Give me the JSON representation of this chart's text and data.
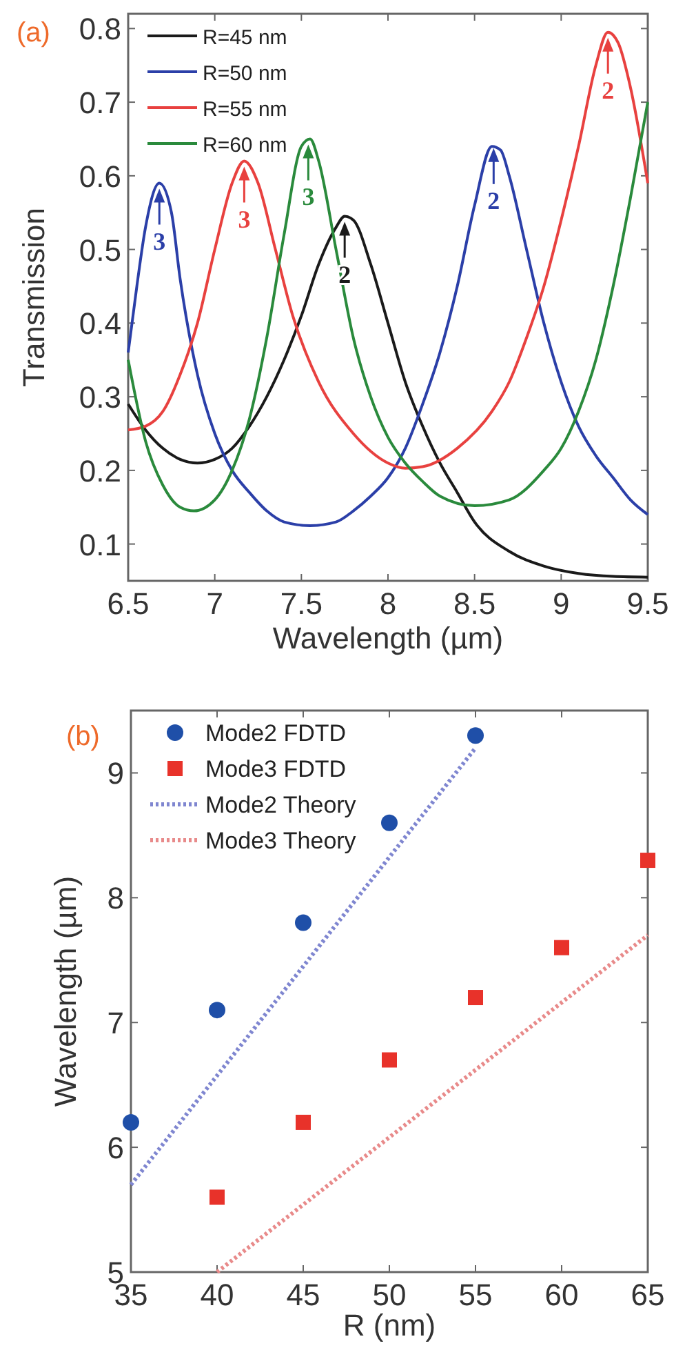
{
  "chart_data": [
    {
      "type": "line",
      "xlabel": "Wavelength (µm)",
      "ylabel": "Transmission",
      "xlim": [
        6.5,
        9.5
      ],
      "ylim": [
        0.05,
        0.82
      ],
      "xticks": [
        6.5,
        7,
        7.5,
        8,
        8.5,
        9,
        9.5
      ],
      "yticks": [
        0.1,
        0.2,
        0.3,
        0.4,
        0.5,
        0.6,
        0.7,
        0.8
      ],
      "legend": "top left",
      "annotations": [
        "(a)",
        {
          "text": "3",
          "x": 6.68,
          "y": 0.59
        },
        {
          "text": "3",
          "x": 7.17,
          "y": 0.62
        },
        {
          "text": "3",
          "x": 7.54,
          "y": 0.65
        },
        {
          "text": "2",
          "x": 7.75,
          "y": 0.545
        },
        {
          "text": "2",
          "x": 8.61,
          "y": 0.645
        },
        {
          "text": "2",
          "x": 9.27,
          "y": 0.795
        }
      ],
      "series": [
        {
          "name": "R=45 nm",
          "color": "#1a1a1a",
          "x": [
            6.5,
            6.6,
            6.7,
            6.8,
            6.9,
            7.0,
            7.1,
            7.2,
            7.3,
            7.4,
            7.5,
            7.6,
            7.7,
            7.75,
            7.8,
            7.9,
            8.0,
            8.1,
            8.2,
            8.3,
            8.4,
            8.5,
            8.7,
            8.9,
            9.1,
            9.3,
            9.5
          ],
          "values": [
            0.29,
            0.255,
            0.23,
            0.215,
            0.21,
            0.215,
            0.23,
            0.26,
            0.3,
            0.35,
            0.41,
            0.48,
            0.53,
            0.545,
            0.54,
            0.48,
            0.4,
            0.32,
            0.26,
            0.21,
            0.17,
            0.13,
            0.09,
            0.07,
            0.06,
            0.056,
            0.055
          ]
        },
        {
          "name": "R=50 nm",
          "color": "#2b3fa8",
          "x": [
            6.5,
            6.55,
            6.6,
            6.68,
            6.75,
            6.8,
            6.9,
            7.0,
            7.1,
            7.2,
            7.3,
            7.4,
            7.55,
            7.7,
            7.8,
            7.9,
            8.0,
            8.1,
            8.2,
            8.3,
            8.4,
            8.5,
            8.6,
            8.65,
            8.7,
            8.8,
            8.9,
            9.0,
            9.1,
            9.2,
            9.3,
            9.4,
            9.5
          ],
          "values": [
            0.36,
            0.45,
            0.53,
            0.59,
            0.55,
            0.46,
            0.33,
            0.25,
            0.2,
            0.17,
            0.145,
            0.13,
            0.125,
            0.13,
            0.145,
            0.165,
            0.19,
            0.23,
            0.29,
            0.36,
            0.45,
            0.56,
            0.64,
            0.635,
            0.6,
            0.5,
            0.4,
            0.32,
            0.26,
            0.22,
            0.19,
            0.16,
            0.14
          ]
        },
        {
          "name": "R=55 nm",
          "color": "#e8413f",
          "x": [
            6.5,
            6.6,
            6.7,
            6.8,
            6.9,
            7.0,
            7.1,
            7.17,
            7.25,
            7.35,
            7.45,
            7.6,
            7.8,
            8.0,
            8.1,
            8.2,
            8.4,
            8.6,
            8.7,
            8.8,
            8.9,
            9.0,
            9.1,
            9.2,
            9.27,
            9.33,
            9.4,
            9.5
          ],
          "values": [
            0.255,
            0.26,
            0.28,
            0.33,
            0.4,
            0.5,
            0.59,
            0.62,
            0.59,
            0.5,
            0.41,
            0.32,
            0.25,
            0.21,
            0.203,
            0.205,
            0.23,
            0.28,
            0.32,
            0.38,
            0.45,
            0.54,
            0.64,
            0.75,
            0.795,
            0.78,
            0.72,
            0.59
          ]
        },
        {
          "name": "R=60 nm",
          "color": "#2a8a3c",
          "x": [
            6.5,
            6.6,
            6.7,
            6.8,
            6.88,
            7.0,
            7.1,
            7.2,
            7.3,
            7.4,
            7.5,
            7.55,
            7.6,
            7.7,
            7.8,
            7.9,
            8.0,
            8.1,
            8.2,
            8.3,
            8.5,
            8.7,
            8.9,
            9.0,
            9.1,
            9.2,
            9.3,
            9.4,
            9.5
          ],
          "values": [
            0.35,
            0.24,
            0.18,
            0.15,
            0.145,
            0.16,
            0.2,
            0.27,
            0.38,
            0.52,
            0.64,
            0.65,
            0.62,
            0.5,
            0.38,
            0.3,
            0.245,
            0.21,
            0.185,
            0.165,
            0.152,
            0.16,
            0.2,
            0.23,
            0.28,
            0.35,
            0.45,
            0.57,
            0.7
          ]
        }
      ]
    },
    {
      "type": "scatter",
      "xlabel": "R (nm)",
      "ylabel": "Wavelength (µm)",
      "xlim": [
        35,
        65
      ],
      "ylim": [
        5,
        9.5
      ],
      "xticks": [
        35,
        40,
        45,
        50,
        55,
        60,
        65
      ],
      "yticks": [
        5,
        6,
        7,
        8,
        9
      ],
      "legend": "top left",
      "annotations": [
        "(b)"
      ],
      "series": [
        {
          "name": "Mode2 FDTD",
          "color": "#1f4fa8",
          "marker": "circle",
          "x": [
            35,
            40,
            45,
            50,
            55
          ],
          "values": [
            6.2,
            7.1,
            7.8,
            8.6,
            9.3
          ]
        },
        {
          "name": "Mode3 FDTD",
          "color": "#e8322a",
          "marker": "square",
          "x": [
            40,
            45,
            50,
            55,
            60,
            65
          ],
          "values": [
            5.6,
            6.2,
            6.7,
            7.2,
            7.6,
            8.3
          ]
        },
        {
          "name": "Mode2 Theory",
          "type": "line",
          "line_style": "dotted",
          "color": "#7f86d0",
          "x": [
            35,
            55
          ],
          "values": [
            5.7,
            9.2
          ]
        },
        {
          "name": "Mode3 Theory",
          "type": "line",
          "line_style": "dotted",
          "color": "#e88a8a",
          "x": [
            40,
            65
          ],
          "values": [
            5.0,
            7.7
          ]
        }
      ]
    }
  ]
}
